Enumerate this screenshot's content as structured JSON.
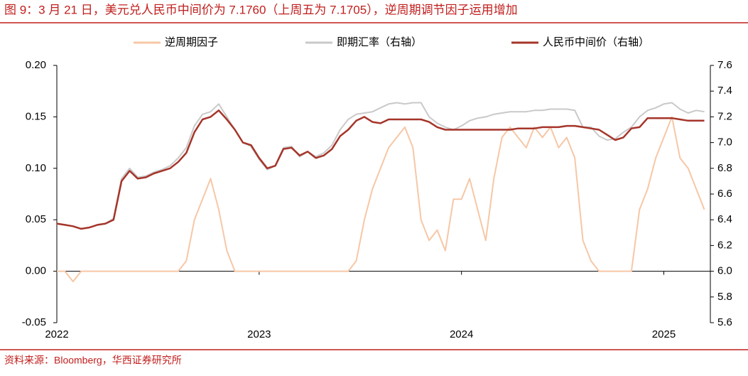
{
  "chart_data": {
    "type": "line",
    "title": "图 9：3 月 21 日，美元兑人民币中间价为 7.1760（上周五为 7.1705），逆周期调节因子运用增加",
    "source": "资料来源：Bloomberg，华西证券研究所",
    "x": [
      2022.0,
      2022.04,
      2022.08,
      2022.12,
      2022.16,
      2022.2,
      2022.24,
      2022.28,
      2022.32,
      2022.36,
      2022.4,
      2022.44,
      2022.48,
      2022.52,
      2022.56,
      2022.6,
      2022.64,
      2022.68,
      2022.72,
      2022.76,
      2022.8,
      2022.84,
      2022.88,
      2022.92,
      2022.96,
      2023.0,
      2023.04,
      2023.08,
      2023.12,
      2023.16,
      2023.2,
      2023.24,
      2023.28,
      2023.32,
      2023.36,
      2023.4,
      2023.44,
      2023.48,
      2023.52,
      2023.56,
      2023.6,
      2023.64,
      2023.68,
      2023.72,
      2023.76,
      2023.8,
      2023.84,
      2023.88,
      2023.92,
      2023.96,
      2024.0,
      2024.04,
      2024.08,
      2024.12,
      2024.16,
      2024.2,
      2024.24,
      2024.28,
      2024.32,
      2024.36,
      2024.4,
      2024.44,
      2024.48,
      2024.52,
      2024.56,
      2024.6,
      2024.64,
      2024.68,
      2024.72,
      2024.76,
      2024.8,
      2024.84,
      2024.88,
      2024.92,
      2024.96,
      2025.0,
      2025.04,
      2025.08,
      2025.12,
      2025.16,
      2025.2
    ],
    "xlim": [
      2022,
      2025.23
    ],
    "xticks": [
      2022,
      2023,
      2024,
      2025
    ],
    "ylim": [
      -0.05,
      0.2
    ],
    "yticks": [
      {
        "value": -0.05,
        "label": "-0.05"
      },
      {
        "value": 0,
        "label": "0.00"
      },
      {
        "value": 0.05,
        "label": "0.05"
      },
      {
        "value": 0.1,
        "label": "0.10"
      },
      {
        "value": 0.15,
        "label": "0.15"
      },
      {
        "value": 0.2,
        "label": "0.20"
      }
    ],
    "y2lim": [
      5.6,
      7.6
    ],
    "y2ticks": [
      5.6,
      5.8,
      {
        "value": 6,
        "label": "6.0"
      },
      6.2,
      6.4,
      6.6,
      6.8,
      {
        "value": 7,
        "label": "7.0"
      },
      7.2,
      7.4,
      7.6
    ],
    "series": [
      {
        "name": "逆周期因子",
        "color": "#f6c7a6",
        "values": [
          0.0,
          0.0,
          -0.01,
          0.0,
          0.0,
          0.0,
          0.0,
          0.0,
          0.0,
          0.0,
          0.0,
          0.0,
          0.0,
          0.0,
          0.0,
          0.0,
          0.01,
          0.05,
          0.07,
          0.09,
          0.06,
          0.02,
          0.0,
          0.0,
          0.0,
          0.0,
          0.0,
          0.0,
          0.0,
          0.0,
          0.0,
          0.0,
          0.0,
          0.0,
          0.0,
          0.0,
          0.0,
          0.01,
          0.05,
          0.08,
          0.1,
          0.12,
          0.13,
          0.14,
          0.12,
          0.05,
          0.03,
          0.04,
          0.02,
          0.07,
          0.07,
          0.09,
          0.06,
          0.03,
          0.09,
          0.13,
          0.14,
          0.13,
          0.12,
          0.14,
          0.13,
          0.14,
          0.12,
          0.13,
          0.11,
          0.03,
          0.01,
          0.0,
          0.0,
          0.0,
          0.0,
          0.0,
          0.06,
          0.08,
          0.11,
          0.13,
          0.15,
          0.11,
          0.1,
          0.08,
          0.06
        ]
      },
      {
        "name": "即期汇率（右轴）",
        "color": "#c9c9c9",
        "axis": "y2",
        "values": [
          6.37,
          6.36,
          6.35,
          6.33,
          6.34,
          6.36,
          6.37,
          6.41,
          6.72,
          6.8,
          6.73,
          6.74,
          6.77,
          6.79,
          6.82,
          6.88,
          6.96,
          7.13,
          7.22,
          7.24,
          7.3,
          7.2,
          7.1,
          7.0,
          6.97,
          6.87,
          6.79,
          6.82,
          6.96,
          6.97,
          6.89,
          6.93,
          6.89,
          6.92,
          6.98,
          7.1,
          7.18,
          7.22,
          7.23,
          7.24,
          7.27,
          7.3,
          7.31,
          7.3,
          7.31,
          7.31,
          7.2,
          7.15,
          7.12,
          7.1,
          7.13,
          7.17,
          7.19,
          7.2,
          7.22,
          7.23,
          7.24,
          7.24,
          7.24,
          7.25,
          7.25,
          7.26,
          7.26,
          7.26,
          7.25,
          7.12,
          7.12,
          7.05,
          7.02,
          7.03,
          7.08,
          7.12,
          7.2,
          7.25,
          7.27,
          7.3,
          7.31,
          7.26,
          7.23,
          7.25,
          7.24
        ]
      },
      {
        "name": "人民币中间价（右轴）",
        "color": "#a5352a",
        "axis": "y2",
        "values": [
          6.37,
          6.36,
          6.35,
          6.33,
          6.34,
          6.36,
          6.37,
          6.4,
          6.7,
          6.78,
          6.72,
          6.73,
          6.76,
          6.78,
          6.8,
          6.85,
          6.92,
          7.08,
          7.18,
          7.2,
          7.25,
          7.18,
          7.1,
          7.0,
          6.98,
          6.88,
          6.8,
          6.82,
          6.95,
          6.96,
          6.9,
          6.93,
          6.88,
          6.9,
          6.95,
          7.05,
          7.1,
          7.17,
          7.2,
          7.16,
          7.15,
          7.18,
          7.18,
          7.18,
          7.18,
          7.18,
          7.16,
          7.12,
          7.1,
          7.1,
          7.1,
          7.1,
          7.1,
          7.1,
          7.1,
          7.1,
          7.1,
          7.11,
          7.11,
          7.11,
          7.12,
          7.12,
          7.12,
          7.13,
          7.13,
          7.12,
          7.11,
          7.1,
          7.06,
          7.02,
          7.04,
          7.11,
          7.12,
          7.19,
          7.19,
          7.19,
          7.19,
          7.18,
          7.17,
          7.17,
          7.17
        ]
      }
    ]
  }
}
